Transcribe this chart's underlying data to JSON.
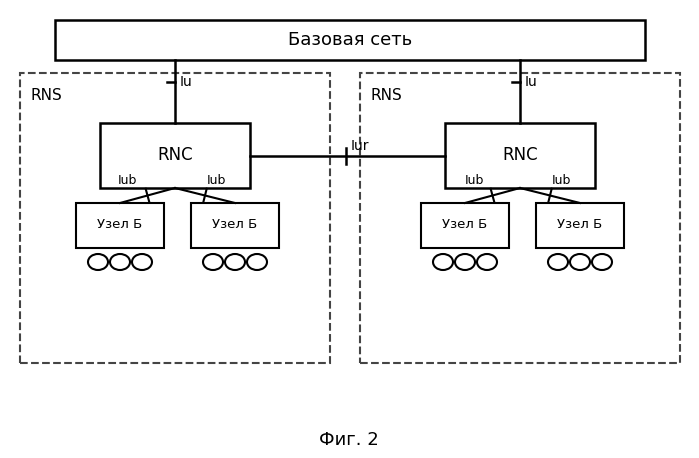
{
  "title": "Фиг. 2",
  "bg_color": "#ffffff",
  "text_color": "#000000",
  "line_color": "#000000",
  "dash_color": "#555555",
  "base_network_label": "Базовая сеть",
  "rns_label": "RNS",
  "rnc_label": "RNC",
  "node_label": "Узел Б",
  "iu_label": "Iu",
  "iur_label": "Iur",
  "lub_label": "Iub"
}
